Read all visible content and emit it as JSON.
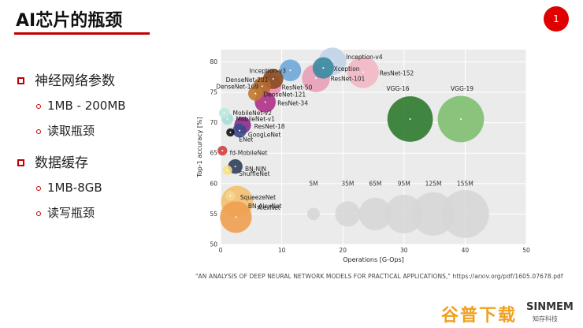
{
  "slide": {
    "title": "AI芯片的瓶颈",
    "page_number": "1",
    "bullets": [
      {
        "label": "神经网络参数",
        "subs": [
          "1MB - 200MB",
          "读取瓶颈"
        ]
      },
      {
        "label": "数据缓存",
        "subs": [
          "1MB-8GB",
          "读写瓶颈"
        ]
      }
    ],
    "citation": "\"AN ANALYSIS OF DEEP NEURAL NETWORK MODELS FOR PRACTICAL APPLICATIONS,\"   https://arxiv.org/pdf/1605.07678.pdf",
    "watermark": "谷普下载",
    "watermark_brand": "SINMEM",
    "watermark_sub": "知存科技"
  },
  "chart_data": {
    "type": "scatter",
    "title": "",
    "xlabel": "Operations [G-Ops]",
    "ylabel": "Top-1 accuracy [%]",
    "xlim": [
      0,
      50
    ],
    "ylim": [
      50,
      82
    ],
    "xticks": [
      0,
      10,
      20,
      30,
      40,
      50
    ],
    "yticks": [
      50,
      55,
      60,
      65,
      70,
      75,
      80
    ],
    "grid": true,
    "legend_title_note": "bubble size = parameters",
    "points": [
      {
        "name": "AlexNet",
        "x": 2.5,
        "y": 54.5,
        "params_m": 61,
        "color": "#f0a050"
      },
      {
        "name": "BN-AlexNet",
        "x": 2.7,
        "y": 57.0,
        "params_m": 62,
        "color": "#f4c070"
      },
      {
        "name": "SqueezeNet",
        "x": 1.6,
        "y": 58.0,
        "params_m": 2,
        "color": "#f6d590"
      },
      {
        "name": "ShuffleNet",
        "x": 1.1,
        "y": 62.2,
        "params_m": 2,
        "color": "#f8e08a"
      },
      {
        "name": "BN-NIN",
        "x": 2.4,
        "y": 62.8,
        "params_m": 8,
        "color": "#2f3e5a"
      },
      {
        "name": "fd-MobileNet",
        "x": 0.3,
        "y": 65.4,
        "params_m": 2,
        "color": "#d04040"
      },
      {
        "name": "ENet",
        "x": 1.6,
        "y": 68.4,
        "params_m": 1,
        "color": "#111111"
      },
      {
        "name": "GoogLeNet",
        "x": 3.1,
        "y": 68.7,
        "params_m": 7,
        "color": "#3a4a8a"
      },
      {
        "name": "ResNet-18",
        "x": 3.6,
        "y": 69.6,
        "params_m": 12,
        "color": "#8a2a8a"
      },
      {
        "name": "MobileNet-v1",
        "x": 1.1,
        "y": 70.6,
        "params_m": 4,
        "color": "#a8ddd8"
      },
      {
        "name": "MobileNet-v2",
        "x": 0.6,
        "y": 71.6,
        "params_m": 3,
        "color": "#bfe8e0"
      },
      {
        "name": "ResNet-34",
        "x": 7.3,
        "y": 73.4,
        "params_m": 22,
        "color": "#b0308a"
      },
      {
        "name": "DenseNet-121",
        "x": 5.7,
        "y": 74.8,
        "params_m": 8,
        "color": "#c07a30"
      },
      {
        "name": "DenseNet-169",
        "x": 6.8,
        "y": 76.0,
        "params_m": 14,
        "color": "#b0682a"
      },
      {
        "name": "DenseNet-201",
        "x": 8.6,
        "y": 77.2,
        "params_m": 20,
        "color": "#8a4a20"
      },
      {
        "name": "ResNet-50",
        "x": 8.2,
        "y": 76.1,
        "params_m": 25,
        "color": "#e890b0"
      },
      {
        "name": "Inception-v3",
        "x": 11.4,
        "y": 78.6,
        "params_m": 24,
        "color": "#6fa8d8"
      },
      {
        "name": "Xception",
        "x": 16.8,
        "y": 79.0,
        "params_m": 23,
        "color": "#3a8aa0"
      },
      {
        "name": "ResNet-101",
        "x": 15.6,
        "y": 77.3,
        "params_m": 45,
        "color": "#e8a0b8"
      },
      {
        "name": "Inception-v4",
        "x": 18.3,
        "y": 80.1,
        "params_m": 43,
        "color": "#c0d4e8"
      },
      {
        "name": "ResNet-152",
        "x": 23.3,
        "y": 78.3,
        "params_m": 60,
        "color": "#f2b8c4"
      },
      {
        "name": "VGG-16",
        "x": 31.0,
        "y": 70.6,
        "params_m": 138,
        "color": "#2e7a2e"
      },
      {
        "name": "VGG-19",
        "x": 39.3,
        "y": 70.6,
        "params_m": 144,
        "color": "#80c070"
      }
    ],
    "size_legend": [
      {
        "label": "5M",
        "x": 15.2,
        "y": 55,
        "params_m": 5
      },
      {
        "label": "35M",
        "x": 20.8,
        "y": 55,
        "params_m": 35
      },
      {
        "label": "65M",
        "x": 25.3,
        "y": 55,
        "params_m": 65
      },
      {
        "label": "95M",
        "x": 30.0,
        "y": 55,
        "params_m": 95
      },
      {
        "label": "125M",
        "x": 34.8,
        "y": 55,
        "params_m": 125
      },
      {
        "label": "155M",
        "x": 40.0,
        "y": 55,
        "params_m": 155
      }
    ]
  }
}
